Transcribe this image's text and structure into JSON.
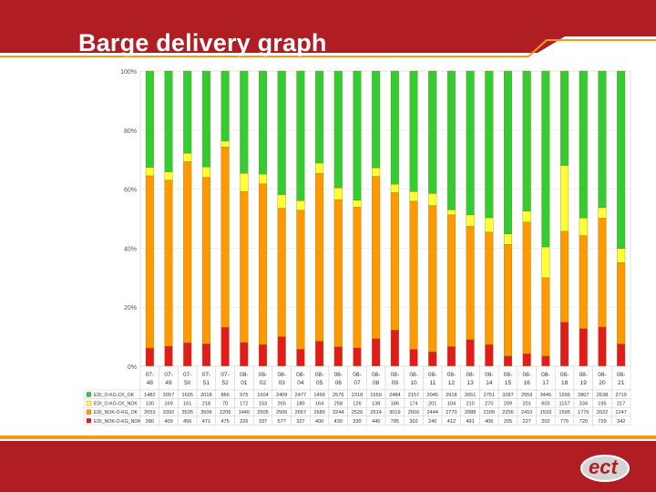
{
  "slide": {
    "title": "Barge delivery graph",
    "logo_text": "ect"
  },
  "colors": {
    "brand_red": "#b01e23",
    "series_green": "#33cc33",
    "series_yellow": "#ffff33",
    "series_orange": "#ff9900",
    "series_red": "#e31b1b",
    "footer_orange": "#f39a1c"
  },
  "chart_data": {
    "type": "bar",
    "stacked": "percent",
    "title": "",
    "xlabel": "",
    "ylabel": "",
    "ylim": [
      0,
      100
    ],
    "yticks": [
      "100%",
      "80%",
      "60%",
      "40%",
      "20%",
      "0%"
    ],
    "categories": [
      "07-48",
      "07-49",
      "07-50",
      "07-51",
      "07-52",
      "08-01",
      "08-02",
      "08-03",
      "08-04",
      "08-05",
      "08-06",
      "08-07",
      "08-08",
      "08-09",
      "08-10",
      "08-11",
      "08-12",
      "08-13",
      "08-14",
      "08-15",
      "08-16",
      "08-17",
      "08-18",
      "08-19",
      "08-20",
      "08-21"
    ],
    "series": [
      {
        "name": "EDI_O-KG-CK_OK",
        "color": "#33cc33",
        "values": [
          1482,
          2057,
          1605,
          2018,
          856,
          975,
          1604,
          2409,
          2477,
          1469,
          2576,
          2318,
          1559,
          2484,
          2157,
          2045,
          2918,
          2651,
          2751,
          3287,
          2559,
          3445,
          1656,
          2807,
          2538,
          2719
        ]
      },
      {
        "name": "EDI_O-KG-CK_NOK",
        "color": "#ffff33",
        "values": [
          130,
          169,
          161,
          218,
          70,
          172,
          153,
          265,
          180,
          164,
          258,
          126,
          138,
          186,
          174,
          201,
          104,
          210,
          270,
          209,
          201,
          603,
          1157,
          334,
          195,
          217
        ]
      },
      {
        "name": "EDI_NOK-O-KG_OK",
        "color": "#ff9900",
        "values": [
          2653,
          3392,
          3535,
          3506,
          2206,
          1440,
          2505,
          2506,
          2657,
          2680,
          3244,
          2526,
          2614,
          3019,
          2656,
          2444,
          2770,
          2088,
          2109,
          2256,
          2410,
          1533,
          1595,
          1776,
          2022,
          1247
        ]
      },
      {
        "name": "EDI_NOK-O-KG_NOK",
        "color": "#e31b1b",
        "values": [
          280,
          409,
          456,
          471,
          475,
          226,
          337,
          577,
          327,
          400,
          430,
          330,
          445,
          795,
          302,
          240,
          412,
          491,
          406,
          205,
          227,
          202,
          775,
          720,
          729,
          342
        ]
      }
    ],
    "legend": "bottom-left table"
  }
}
